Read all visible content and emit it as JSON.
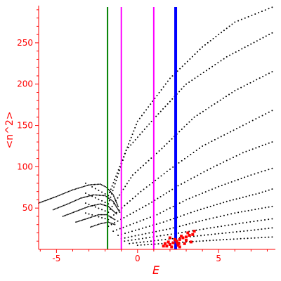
{
  "chart_data": {
    "type": "scatter",
    "title": "",
    "xlabel": "E",
    "ylabel": "<n^2>",
    "xlim": [
      -6.1,
      8.5
    ],
    "ylim": [
      0,
      295
    ],
    "x_ticks": [
      -5,
      0,
      5
    ],
    "y_ticks": [
      50,
      100,
      150,
      200,
      250
    ],
    "grid": false,
    "legend": "none",
    "colors": {
      "axes": "#ff0000",
      "points": "#000000",
      "highlight_points": "#ff0000",
      "line_green": "#008000",
      "line_magenta": "#ff00ff",
      "line_blue": "#0000ff"
    },
    "vertical_lines": [
      {
        "x": -1.85,
        "color": "#008000",
        "width": 2
      },
      {
        "x": -1.0,
        "color": "#ff00ff",
        "width": 2
      },
      {
        "x": 1.0,
        "color": "#ff00ff",
        "width": 2
      },
      {
        "x": 2.35,
        "color": "#0000ff",
        "width": 4
      }
    ],
    "curves": [
      {
        "points": [
          [
            -3.2,
            80
          ],
          [
            -1.8,
            65
          ],
          [
            0.0,
            155
          ],
          [
            2.0,
            207
          ],
          [
            4.0,
            245
          ],
          [
            6.0,
            275
          ],
          [
            8.3,
            293
          ]
        ]
      },
      {
        "points": [
          [
            -3.2,
            68
          ],
          [
            -1.8,
            55
          ],
          [
            -0.7,
            120
          ],
          [
            1.0,
            158
          ],
          [
            3.0,
            200
          ],
          [
            5.5,
            233
          ],
          [
            8.3,
            262
          ]
        ]
      },
      {
        "points": [
          [
            -3.2,
            56
          ],
          [
            -1.8,
            45
          ],
          [
            -0.3,
            90
          ],
          [
            1.5,
            122
          ],
          [
            3.5,
            160
          ],
          [
            6.0,
            192
          ],
          [
            8.3,
            215
          ]
        ]
      },
      {
        "points": [
          [
            -3.2,
            44
          ],
          [
            -1.8,
            36
          ],
          [
            0.2,
            70
          ],
          [
            2.0,
            97
          ],
          [
            4.0,
            125
          ],
          [
            6.5,
            150
          ],
          [
            8.3,
            168
          ]
        ]
      },
      {
        "points": [
          [
            -1.8,
            28
          ],
          [
            0.7,
            55
          ],
          [
            2.5,
            77
          ],
          [
            4.5,
            98
          ],
          [
            6.5,
            117
          ],
          [
            8.3,
            130
          ]
        ]
      },
      {
        "points": [
          [
            -1.5,
            22
          ],
          [
            1.2,
            42
          ],
          [
            3.0,
            60
          ],
          [
            5.0,
            76
          ],
          [
            7.0,
            90
          ],
          [
            8.3,
            98
          ]
        ]
      },
      {
        "points": [
          [
            -1.2,
            17
          ],
          [
            1.6,
            33
          ],
          [
            3.5,
            46
          ],
          [
            5.5,
            58
          ],
          [
            7.5,
            68
          ],
          [
            8.3,
            73
          ]
        ]
      },
      {
        "points": [
          [
            -1.0,
            13
          ],
          [
            2.0,
            25
          ],
          [
            4.0,
            35
          ],
          [
            6.0,
            44
          ],
          [
            8.3,
            52
          ]
        ]
      },
      {
        "points": [
          [
            -0.8,
            10
          ],
          [
            2.3,
            19
          ],
          [
            4.5,
            26
          ],
          [
            6.5,
            32
          ],
          [
            8.3,
            37
          ]
        ]
      },
      {
        "points": [
          [
            -0.5,
            7
          ],
          [
            2.6,
            14
          ],
          [
            5.0,
            19
          ],
          [
            7.0,
            23
          ],
          [
            8.3,
            26
          ]
        ]
      },
      {
        "points": [
          [
            0.0,
            5
          ],
          [
            3.0,
            9
          ],
          [
            5.5,
            12
          ],
          [
            8.3,
            15
          ]
        ]
      }
    ],
    "left_curves": [
      {
        "points": [
          [
            -6.1,
            56
          ],
          [
            -5.0,
            64
          ],
          [
            -4.0,
            72
          ],
          [
            -3.0,
            78
          ],
          [
            -2.3,
            79
          ],
          [
            -1.9,
            75
          ],
          [
            -1.5,
            66
          ],
          [
            -1.2,
            52
          ]
        ]
      },
      {
        "points": [
          [
            -5.2,
            48
          ],
          [
            -4.3,
            55
          ],
          [
            -3.5,
            62
          ],
          [
            -2.7,
            66
          ],
          [
            -2.0,
            65
          ],
          [
            -1.5,
            58
          ],
          [
            -1.1,
            45
          ]
        ]
      },
      {
        "points": [
          [
            -4.6,
            40
          ],
          [
            -3.8,
            46
          ],
          [
            -3.0,
            52
          ],
          [
            -2.3,
            55
          ],
          [
            -1.8,
            52
          ],
          [
            -1.3,
            43
          ]
        ]
      },
      {
        "points": [
          [
            -3.8,
            33
          ],
          [
            -3.0,
            38
          ],
          [
            -2.4,
            42
          ],
          [
            -1.9,
            42
          ],
          [
            -1.4,
            36
          ]
        ]
      },
      {
        "points": [
          [
            -2.9,
            27
          ],
          [
            -2.3,
            31
          ],
          [
            -1.8,
            33
          ],
          [
            -1.4,
            30
          ]
        ]
      }
    ],
    "highlight_points": [
      [
        1.8,
        4
      ],
      [
        2.0,
        6
      ],
      [
        2.2,
        8
      ],
      [
        2.4,
        10
      ],
      [
        2.6,
        12
      ],
      [
        2.8,
        14
      ],
      [
        3.0,
        15
      ],
      [
        3.2,
        17
      ],
      [
        3.4,
        18
      ],
      [
        2.1,
        3
      ],
      [
        2.5,
        5
      ],
      [
        2.9,
        7
      ],
      [
        3.3,
        9
      ],
      [
        1.9,
        9
      ],
      [
        2.3,
        12
      ],
      [
        2.7,
        16
      ],
      [
        3.1,
        20
      ],
      [
        3.5,
        22
      ],
      [
        1.7,
        7
      ],
      [
        2.6,
        3
      ],
      [
        3.0,
        11
      ],
      [
        2.0,
        14
      ],
      [
        1.6,
        4
      ],
      [
        2.45,
        8
      ],
      [
        2.55,
        7
      ]
    ]
  }
}
